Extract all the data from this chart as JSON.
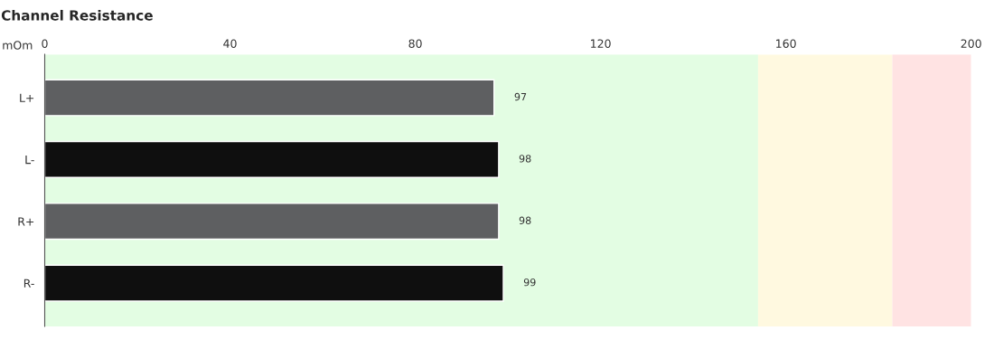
{
  "chart_data": {
    "type": "bar",
    "orientation": "horizontal",
    "title": "Channel Resistance",
    "xlabel": "mOm",
    "categories": [
      "L+",
      "L-",
      "R+",
      "R-"
    ],
    "values": [
      97,
      98,
      98,
      99
    ],
    "colors": [
      "#5e5f61",
      "#0f0f0f",
      "#5e5f61",
      "#0f0f0f"
    ],
    "data_labels": true,
    "xlim": [
      0,
      200
    ],
    "xticks": [
      0,
      40,
      80,
      120,
      160,
      200
    ],
    "bands": [
      {
        "axis": "x",
        "from": 0,
        "to": 154,
        "color": "#e3fde3"
      },
      {
        "axis": "x",
        "from": 154,
        "to": 183,
        "color": "#fff9e0"
      },
      {
        "axis": "x",
        "from": 183,
        "to": 200,
        "color": "#ffe3e3"
      }
    ],
    "grid": false,
    "legend": false
  }
}
